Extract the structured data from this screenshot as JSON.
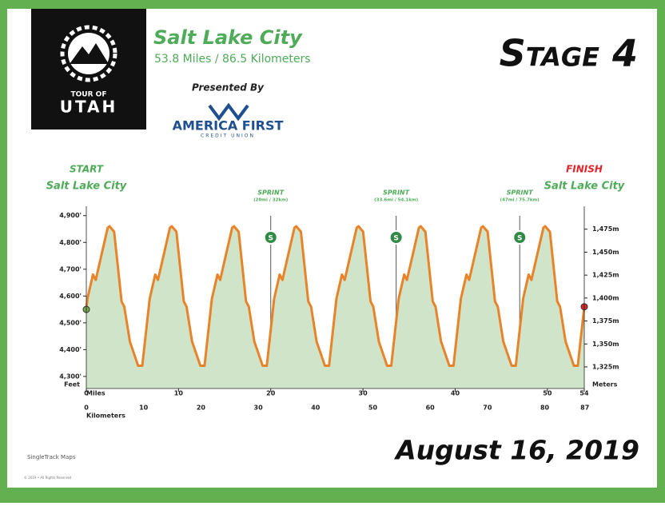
{
  "chart_data": {
    "type": "line",
    "title": "Salt Lake City",
    "subtitle": "53.8 Miles / 86.5 Kilometers",
    "presented_by": "Presented By",
    "sponsor": "AMERICA FIRST",
    "sponsor_sub": "CREDIT UNION",
    "logo_top": "TOUR OF",
    "logo_bottom": "UTAH",
    "stage": "Stage 4",
    "date": "August 16, 2019",
    "credit": "SingleTrack Maps",
    "copyright": "© 2019 • All Rights Reserved",
    "start": {
      "label": "START",
      "place": "Salt Lake City"
    },
    "finish": {
      "label": "FINISH",
      "place": "Salt Lake City"
    },
    "sprints": [
      {
        "label": "SPRINT",
        "detail": "(20mi / 32km)",
        "mile": 20,
        "icon": "S"
      },
      {
        "label": "SPRINT",
        "detail": "(33.6mi / 54.1km)",
        "mile": 33.6,
        "icon": "S"
      },
      {
        "label": "SPRINT",
        "detail": "(47mi / 75.7km)",
        "mile": 47,
        "icon": "S"
      }
    ],
    "xlabel": "Miles",
    "x2label": "Kilometers",
    "ylabel": "Feet",
    "y2label": "Meters",
    "xlim": [
      0,
      54
    ],
    "xticks": [
      0,
      10,
      20,
      30,
      40,
      50,
      54
    ],
    "x2lim": [
      0,
      86.9
    ],
    "x2ticks": [
      0,
      10,
      20,
      30,
      40,
      50,
      60,
      70,
      80,
      87
    ],
    "ylim": [
      4255,
      4935
    ],
    "yticks": [
      {
        "value": 4300,
        "label": "4,300'"
      },
      {
        "value": 4400,
        "label": "4,400'"
      },
      {
        "value": 4500,
        "label": "4,500'"
      },
      {
        "value": 4600,
        "label": "4,600'"
      },
      {
        "value": 4700,
        "label": "4,700'"
      },
      {
        "value": 4800,
        "label": "4,800'"
      },
      {
        "value": 4900,
        "label": "4,900'"
      }
    ],
    "y2lim": [
      1301.5,
      1500
    ],
    "y2ticks": [
      {
        "value": 1325,
        "label": "1,325m"
      },
      {
        "value": 1350,
        "label": "1,350m"
      },
      {
        "value": 1375,
        "label": "1,375m"
      },
      {
        "value": 1400,
        "label": "1,400m"
      },
      {
        "value": 1425,
        "label": "1,425m"
      },
      {
        "value": 1450,
        "label": "1,450m"
      },
      {
        "value": 1475,
        "label": "1,475m"
      }
    ],
    "x": [
      0,
      0.12,
      0.72,
      1.02,
      1.62,
      2.32,
      2.52,
      3.02,
      3.82,
      4.12,
      4.72,
      5.62,
      6.07,
      6.87,
      7.47,
      7.77,
      8.37,
      9.07,
      9.27,
      9.77,
      10.57,
      10.87,
      11.47,
      12.37,
      12.82,
      13.62,
      14.22,
      14.52,
      15.12,
      15.82,
      16.02,
      16.52,
      17.32,
      17.62,
      18.22,
      19.12,
      19.57,
      20.37,
      20.97,
      21.27,
      21.87,
      22.57,
      22.77,
      23.27,
      24.07,
      24.37,
      24.97,
      25.87,
      26.32,
      27.12,
      27.72,
      28.02,
      28.62,
      29.32,
      29.52,
      30.02,
      30.82,
      31.12,
      31.72,
      32.62,
      33.07,
      33.87,
      34.47,
      34.77,
      35.37,
      36.07,
      36.27,
      36.77,
      37.57,
      37.87,
      38.47,
      39.37,
      39.82,
      40.62,
      41.22,
      41.52,
      42.12,
      42.82,
      43.02,
      43.52,
      44.32,
      44.62,
      45.22,
      46.12,
      46.57,
      47.37,
      47.97,
      48.27,
      48.87,
      49.57,
      49.77,
      50.27,
      51.07,
      51.37,
      51.97,
      52.87,
      53.3,
      54
    ],
    "series": [
      {
        "name": "Elevation",
        "color": "#e8832a",
        "fill": "#cfe4c9",
        "values": [
          4550,
          4590,
          4680,
          4660,
          4750,
          4855,
          4860,
          4840,
          4580,
          4560,
          4430,
          4340,
          4340,
          4590,
          4680,
          4660,
          4750,
          4855,
          4860,
          4840,
          4580,
          4560,
          4430,
          4340,
          4340,
          4590,
          4680,
          4660,
          4750,
          4855,
          4860,
          4840,
          4580,
          4560,
          4430,
          4340,
          4340,
          4590,
          4680,
          4660,
          4750,
          4855,
          4860,
          4840,
          4580,
          4560,
          4430,
          4340,
          4340,
          4590,
          4680,
          4660,
          4750,
          4855,
          4860,
          4840,
          4580,
          4560,
          4430,
          4340,
          4340,
          4590,
          4680,
          4660,
          4750,
          4855,
          4860,
          4840,
          4580,
          4560,
          4430,
          4340,
          4340,
          4590,
          4680,
          4660,
          4750,
          4855,
          4860,
          4840,
          4580,
          4560,
          4430,
          4340,
          4340,
          4590,
          4680,
          4660,
          4750,
          4855,
          4860,
          4840,
          4580,
          4560,
          4430,
          4340,
          4340,
          4560
        ]
      }
    ]
  }
}
